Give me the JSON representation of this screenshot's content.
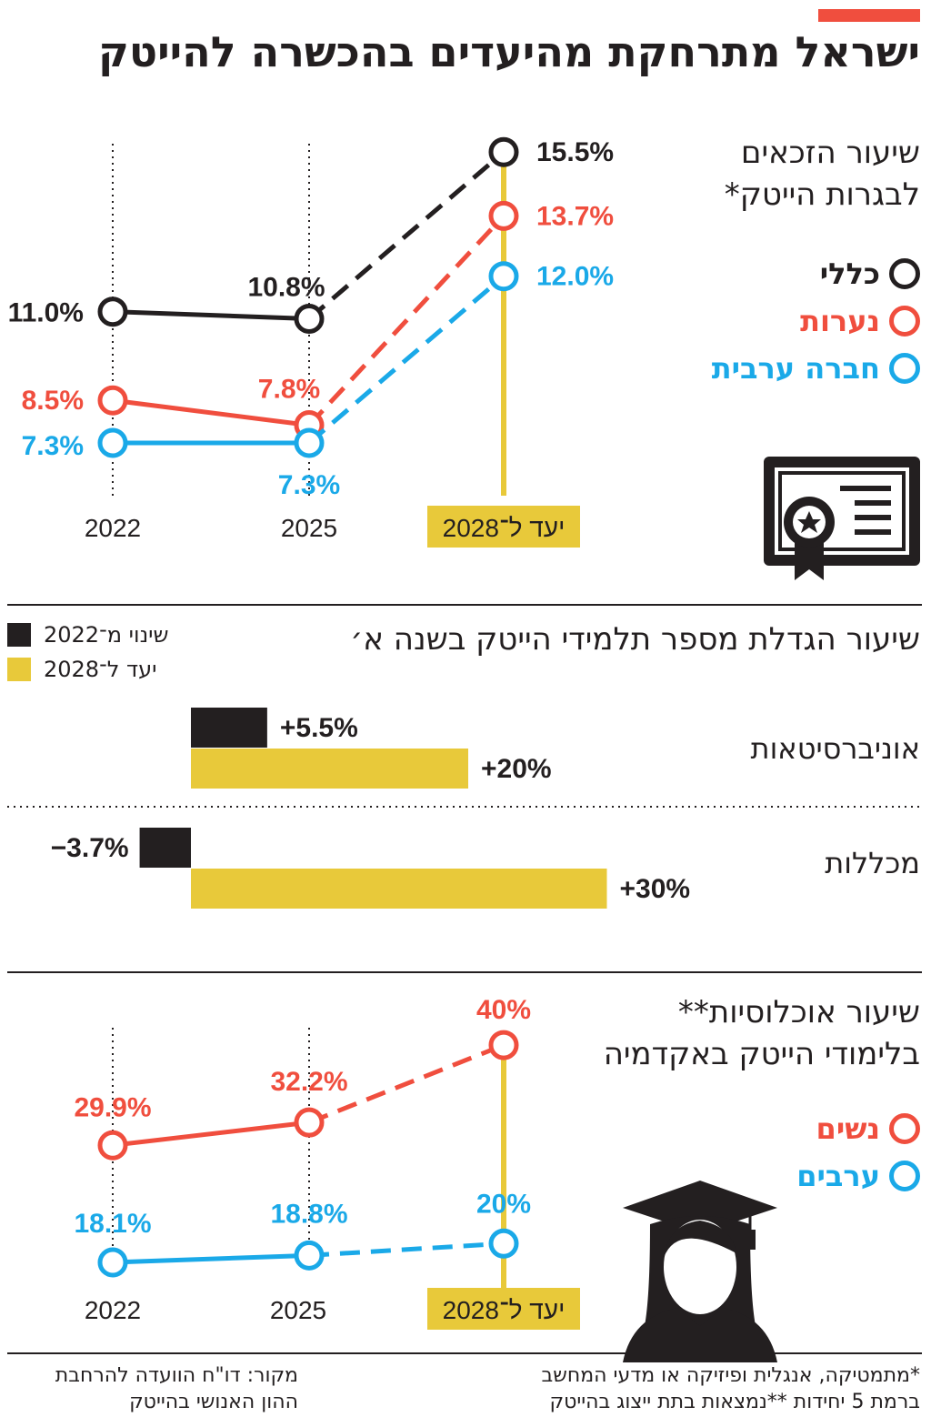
{
  "title": "ישראל מתרחקת מהיעדים בהכשרה להייטק",
  "colors": {
    "accent": "#f04e3e",
    "general": "#231f20",
    "girls": "#f04e3e",
    "arab": "#1aa9e8",
    "target": "#e8c93a"
  },
  "chart_data": [
    {
      "type": "line",
      "title": [
        "שיעור הזכאים",
        "לבגרות הייטק*"
      ],
      "categories": [
        "2022",
        "2025",
        "2028"
      ],
      "target_label": "יעד ל־2028",
      "series": [
        {
          "name": "כללי",
          "color": "#231f20",
          "values": [
            11.0,
            10.8,
            15.5
          ],
          "labels": [
            "11.0%",
            "10.8%",
            "15.5%"
          ]
        },
        {
          "name": "נערות",
          "color": "#f04e3e",
          "values": [
            8.5,
            7.8,
            13.7
          ],
          "labels": [
            "8.5%",
            "7.8%",
            "13.7%"
          ]
        },
        {
          "name": "חברה ערבית",
          "color": "#1aa9e8",
          "values": [
            7.3,
            7.3,
            12.0
          ],
          "labels": [
            "7.3%",
            "7.3%",
            "12.0%"
          ]
        }
      ],
      "dashed_segment": "2025-2028"
    },
    {
      "type": "bar",
      "title": "שיעור הגדלת מספר תלמידי הייטק בשנה א׳",
      "legend": [
        {
          "name": "שינוי מ־2022",
          "color": "#231f20"
        },
        {
          "name": "יעד ל־2028",
          "color": "#e8c93a"
        }
      ],
      "categories": [
        "אוניברסיטאות",
        "מכללות"
      ],
      "series": [
        {
          "name": "שינוי מ־2022",
          "values": [
            5.5,
            -3.7
          ],
          "labels": [
            "+5.5%",
            "−3.7%"
          ]
        },
        {
          "name": "יעד ל־2028",
          "values": [
            20,
            30
          ],
          "labels": [
            "+20%",
            "+30%"
          ]
        }
      ]
    },
    {
      "type": "line",
      "title": [
        "שיעור אוכלוסיות**",
        "בלימודי הייטק באקדמיה"
      ],
      "categories": [
        "2022",
        "2025",
        "2028"
      ],
      "target_label": "יעד ל־2028",
      "series": [
        {
          "name": "נשים",
          "color": "#f04e3e",
          "values": [
            29.9,
            32.2,
            40
          ],
          "labels": [
            "29.9%",
            "32.2%",
            "40%"
          ]
        },
        {
          "name": "ערבים",
          "color": "#1aa9e8",
          "values": [
            18.1,
            18.8,
            20
          ],
          "labels": [
            "18.1%",
            "18.8%",
            "20%"
          ]
        }
      ],
      "dashed_segment": "2025-2028"
    }
  ],
  "footnote": [
    "*מתמטיקה, אנגלית ופיזיקה או מדעי המחשב",
    "ברמת 5 יחידות **נמצאות בתת ייצוג בהייטק"
  ],
  "source": [
    "מקור: דו\"ח הוועדה להרחבת",
    "ההון האנושי בהייטק"
  ]
}
